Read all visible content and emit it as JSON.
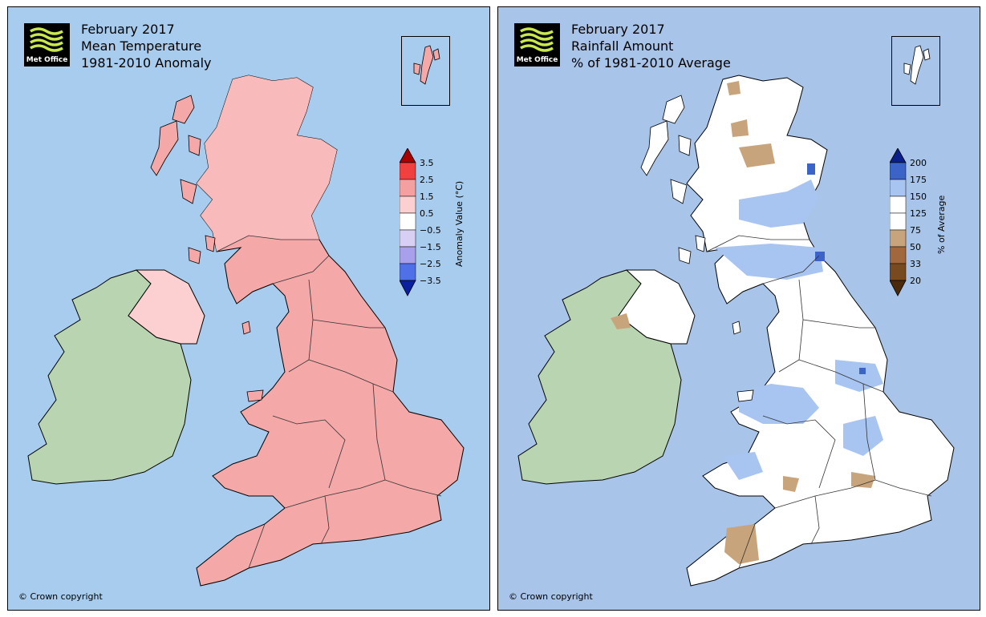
{
  "left_panel": {
    "logo_text": "Met Office",
    "title_lines": [
      "February 2017",
      "Mean Temperature",
      "1981-2010 Anomaly"
    ],
    "legend_title": "Anomaly Value (°C)",
    "legend_ticks": [
      "3.5",
      "2.5",
      "1.5",
      "0.5",
      "−0.5",
      "−1.5",
      "−2.5",
      "−3.5"
    ],
    "legend_colors": [
      "#a80000",
      "#f04040",
      "#f5a0a0",
      "#fcd0d0",
      "#ffffff",
      "#d8d0f4",
      "#a8a0ea",
      "#5070e8",
      "#0a20a0"
    ],
    "copyright": "© Crown copyright",
    "colors": {
      "sea": "#a8ccee",
      "ireland": "#b8d4b0",
      "land": "#f4a8a8",
      "land_light": "#fcd0d0"
    }
  },
  "right_panel": {
    "logo_text": "Met Office",
    "title_lines": [
      "February 2017",
      "Rainfall Amount",
      "% of 1981-2010 Average"
    ],
    "legend_title": "% of Average",
    "legend_ticks": [
      "200",
      "175",
      "150",
      "125",
      "75",
      "50",
      "33",
      "20"
    ],
    "legend_colors": [
      "#0a1e8c",
      "#3c64c8",
      "#a8c4f0",
      "#ffffff",
      "#c8a47c",
      "#a0683c",
      "#784a20",
      "#4a2a0a"
    ],
    "copyright": "© Crown copyright",
    "colors": {
      "sea": "#a8c4e8",
      "ireland": "#b8d4b0",
      "land": "#ffffff",
      "land_blue": "#a8c4f0",
      "land_brown": "#c8a47c"
    }
  }
}
